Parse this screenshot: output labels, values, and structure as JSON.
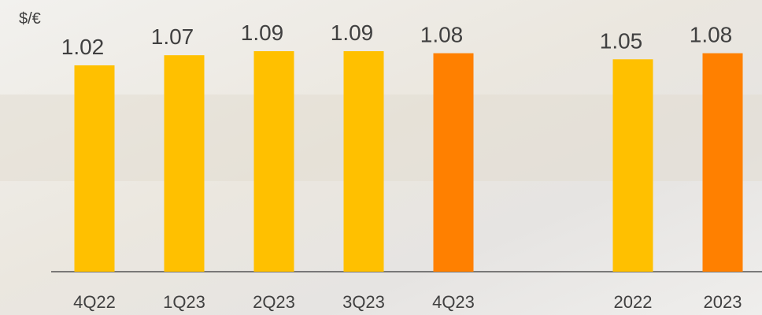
{
  "chart_data": {
    "type": "bar",
    "y_label": "$/€",
    "categories": [
      "4Q22",
      "1Q23",
      "2Q23",
      "3Q23",
      "4Q23",
      null,
      "2022",
      "2023"
    ],
    "values": [
      1.02,
      1.07,
      1.09,
      1.09,
      1.08,
      null,
      1.05,
      1.08
    ],
    "colors": [
      "#ffc000",
      "#ffc000",
      "#ffc000",
      "#ffc000",
      "#ff8000",
      null,
      "#ffc000",
      "#ff8000"
    ]
  }
}
